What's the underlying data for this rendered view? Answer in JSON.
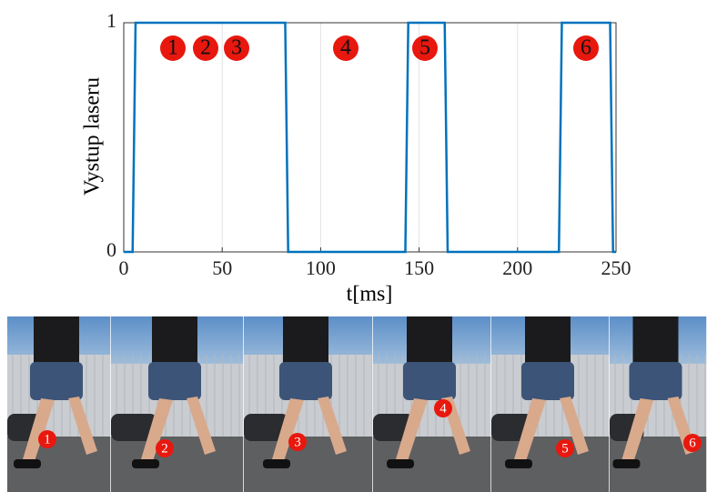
{
  "chart_data": {
    "type": "line",
    "ylabel": "Vystup laseru",
    "xlabel": "t[ms]",
    "x": [
      0,
      4.5,
      6,
      82,
      83.5,
      143,
      144.5,
      163,
      164.5,
      221,
      222.5,
      247,
      248.5,
      250
    ],
    "values": [
      0,
      0,
      1,
      1,
      0,
      0,
      1,
      1,
      0,
      0,
      1,
      1,
      0,
      0
    ],
    "color": "#0072bd",
    "xlim": [
      0,
      250
    ],
    "xticks": [
      0,
      50,
      100,
      150,
      200,
      250
    ],
    "ylim": [
      0,
      1
    ],
    "yticks": [
      0,
      1
    ],
    "grid": true,
    "annotations": [
      "1",
      "2",
      "3",
      "4",
      "5",
      "6"
    ]
  }
}
